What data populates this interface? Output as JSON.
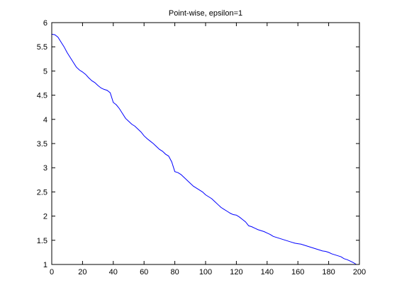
{
  "chart_data": {
    "type": "line",
    "title": "Point-wise, epsilon=1",
    "xlabel": "",
    "ylabel": "",
    "xlim": [
      0,
      200
    ],
    "ylim": [
      1,
      6
    ],
    "xticks": [
      0,
      20,
      40,
      60,
      80,
      100,
      120,
      140,
      160,
      180,
      200
    ],
    "yticks": [
      1,
      1.5,
      2,
      2.5,
      3,
      3.5,
      4,
      4.5,
      5,
      5.5,
      6
    ],
    "ytick_labels": [
      "1",
      "1.5",
      "2",
      "2.5",
      "3",
      "3.5",
      "4",
      "4.5",
      "5",
      "5.5",
      "6"
    ],
    "grid": false,
    "legend": "none",
    "line_color": "#0000ff",
    "series": [
      {
        "x": [
          0,
          2,
          4,
          6,
          8,
          10,
          12,
          14,
          16,
          18,
          20,
          22,
          24,
          26,
          28,
          30,
          32,
          34,
          36,
          38,
          40,
          42,
          44,
          46,
          48,
          50,
          52,
          54,
          56,
          58,
          60,
          62,
          64,
          66,
          68,
          70,
          72,
          74,
          76,
          78,
          80,
          82,
          84,
          86,
          88,
          90,
          92,
          94,
          96,
          98,
          100,
          102,
          104,
          106,
          108,
          110,
          112,
          114,
          116,
          118,
          120,
          122,
          124,
          126,
          128,
          130,
          132,
          134,
          136,
          138,
          140,
          142,
          144,
          146,
          148,
          150,
          152,
          154,
          156,
          158,
          160,
          162,
          164,
          166,
          168,
          170,
          172,
          174,
          176,
          178,
          180,
          182,
          184,
          186,
          188,
          190,
          192,
          194,
          196,
          198
        ],
        "values": [
          5.76,
          5.75,
          5.7,
          5.6,
          5.5,
          5.38,
          5.28,
          5.18,
          5.08,
          5.02,
          4.98,
          4.93,
          4.86,
          4.8,
          4.76,
          4.7,
          4.65,
          4.62,
          4.6,
          4.55,
          4.35,
          4.3,
          4.22,
          4.12,
          4.02,
          3.96,
          3.9,
          3.86,
          3.8,
          3.74,
          3.66,
          3.6,
          3.55,
          3.5,
          3.44,
          3.38,
          3.34,
          3.28,
          3.24,
          3.12,
          2.92,
          2.9,
          2.86,
          2.8,
          2.74,
          2.68,
          2.62,
          2.58,
          2.54,
          2.5,
          2.44,
          2.4,
          2.36,
          2.3,
          2.24,
          2.18,
          2.14,
          2.1,
          2.06,
          2.03,
          2.02,
          1.98,
          1.93,
          1.88,
          1.8,
          1.78,
          1.75,
          1.72,
          1.7,
          1.68,
          1.65,
          1.62,
          1.58,
          1.56,
          1.54,
          1.52,
          1.5,
          1.48,
          1.46,
          1.44,
          1.43,
          1.42,
          1.4,
          1.38,
          1.36,
          1.34,
          1.32,
          1.3,
          1.28,
          1.27,
          1.25,
          1.22,
          1.2,
          1.18,
          1.16,
          1.12,
          1.1,
          1.07,
          1.04,
          1.0
        ]
      }
    ]
  }
}
